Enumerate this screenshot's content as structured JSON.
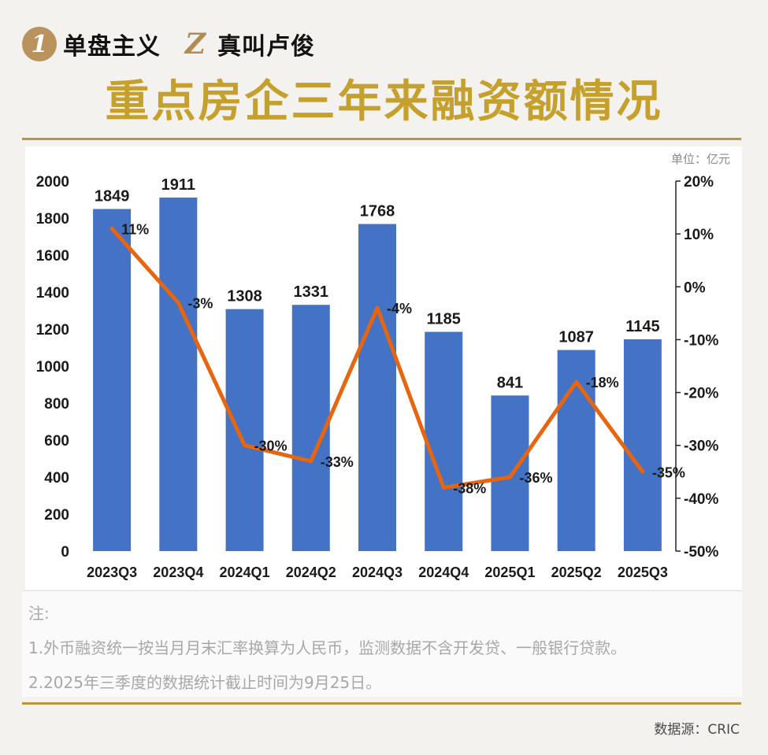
{
  "brand": {
    "badge1": "1",
    "text1": "单盘主义",
    "badge2": "Z",
    "text2": "真叫卢俊"
  },
  "title": "重点房企三年来融资额情况",
  "unit_label": "单位：亿元",
  "notes": {
    "head": "注:",
    "line1": "1.外币融资统一按当月月末汇率换算为人民币，监测数据不含开发贷、一般银行贷款。",
    "line2": "2.2025年三季度的数据统计截止时间为9月25日。"
  },
  "source": "数据源：CRIC",
  "colors": {
    "bar": "#4472c4",
    "line": "#e8650f",
    "title": "#c5a02c",
    "rule": "#b8953f"
  },
  "chart_data": {
    "type": "bar",
    "categories": [
      "2023Q3",
      "2023Q4",
      "2024Q1",
      "2024Q2",
      "2024Q3",
      "2024Q4",
      "2025Q1",
      "2025Q2",
      "2025Q3"
    ],
    "series": [
      {
        "type": "bar",
        "values": [
          1849,
          1911,
          1308,
          1331,
          1768,
          1185,
          841,
          1087,
          1145
        ],
        "labels": [
          "1849",
          "1911",
          "1308",
          "1331",
          "1768",
          "1185",
          "841",
          "1087",
          "1145"
        ]
      },
      {
        "type": "line",
        "axis": "right",
        "values": [
          11,
          -3,
          -30,
          -33,
          -4,
          -38,
          -36,
          -18,
          -35
        ],
        "labels": [
          "11%",
          "-3%",
          "-30%",
          "-33%",
          "-4%",
          "-38%",
          "-36%",
          "-18%",
          "-35%"
        ]
      }
    ],
    "y_left": {
      "ylim": [
        0,
        2000
      ],
      "ticks": [
        "0",
        "200",
        "400",
        "600",
        "800",
        "1000",
        "1200",
        "1400",
        "1600",
        "1800",
        "2000"
      ]
    },
    "y_right": {
      "ylim": [
        -50,
        20
      ],
      "ticks": [
        "-50%",
        "-40%",
        "-30%",
        "-20%",
        "-10%",
        "0%",
        "10%",
        "20%"
      ]
    },
    "grid": false
  }
}
